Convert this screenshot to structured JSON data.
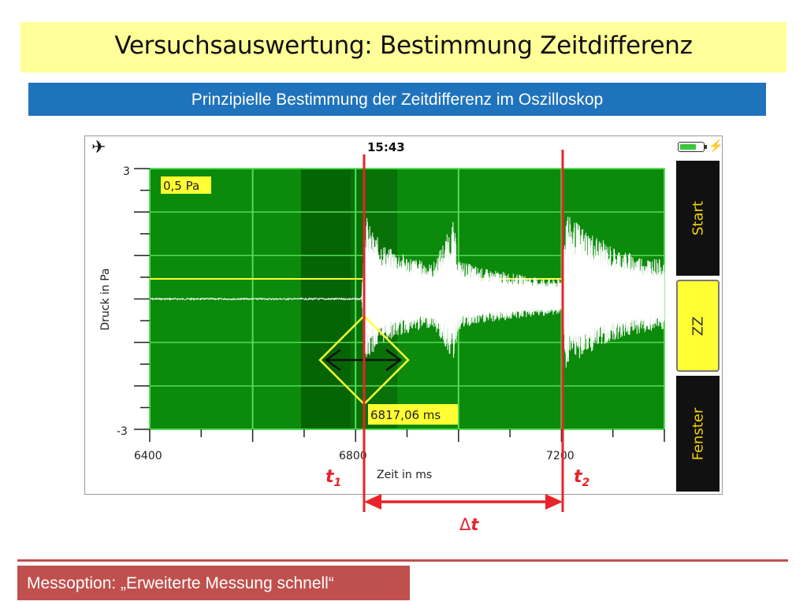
{
  "slide": {
    "title": "Versuchsauswertung: Bestimmung Zeitdifferenz",
    "subtitle": "Prinzipielle Bestimmung der Zeitdifferenz im Oszilloskop",
    "footer": "Messoption: „Erweiterte Messung schnell“"
  },
  "phone": {
    "time": "15:43",
    "icons": {
      "airplane": "airplane-icon",
      "battery": "battery-icon",
      "charging": "charging-bolt-icon"
    },
    "battery_level": 0.8,
    "buttons": [
      {
        "label": "Start"
      },
      {
        "label": "ZZ"
      },
      {
        "label": "Fenster"
      }
    ]
  },
  "plot": {
    "ylabel": "Druck in Pa",
    "xlabel": "Zeit in ms",
    "y_top_label": "3",
    "y_bottom_label": "-3",
    "x_tick_labels": [
      "6400",
      "6800",
      "7200"
    ],
    "scale_label": "0,5 Pa",
    "cursor_label": "6817,06 ms",
    "colors": {
      "plot_bg": "#0b8a0b",
      "grid": "#55dd55",
      "signal": "#ffffff",
      "highlight": "#ffff33",
      "marker": "#e8232a"
    }
  },
  "annotations": {
    "t1": "t",
    "t1_sub": "1",
    "t2": "t",
    "t2_sub": "2",
    "delta": "Δ",
    "delta_var": "t"
  },
  "chart_data": {
    "type": "line",
    "xlabel": "Zeit in ms",
    "ylabel": "Druck in Pa",
    "xlim": [
      6400,
      7400
    ],
    "ylim": [
      -3,
      3
    ],
    "series": [
      {
        "x": [
          6400,
          6500,
          6600,
          6800,
          6812,
          6817,
          6830,
          6860,
          6900,
          6950,
          6990,
          7000,
          7050,
          7100,
          7150,
          7200,
          7210,
          7215,
          7250,
          7300,
          7350,
          7400
        ],
        "y": [
          0,
          0,
          0,
          0,
          0,
          2.1,
          1.6,
          1.2,
          1.0,
          0.8,
          1.8,
          0.9,
          0.7,
          0.6,
          0.5,
          0.45,
          2.2,
          1.9,
          1.6,
          1.2,
          1.0,
          0.9
        ]
      }
    ],
    "markers": {
      "t1": 6817,
      "t2": 7200
    }
  }
}
